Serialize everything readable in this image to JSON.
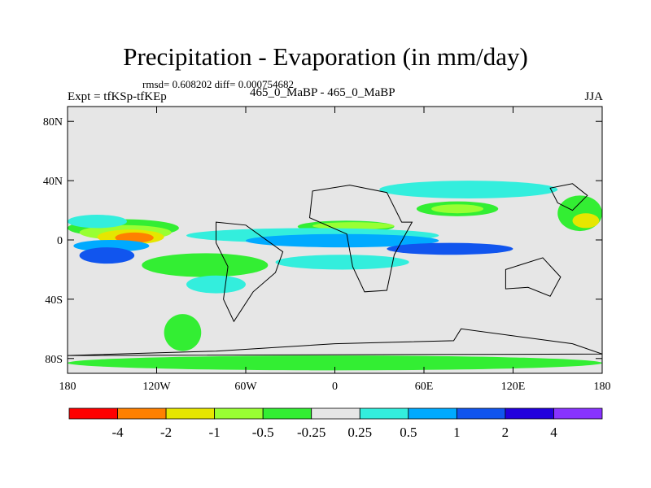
{
  "chart_data": {
    "type": "heatmap",
    "title": "Precipitation - Evaporation (in mm/day)",
    "stats_line": "rmsd= 0.608202 diff= 0.000754682",
    "experiment_label": "Expt = tfKSp-tfKEp",
    "center_subtitle": "465_0_MaBP - 465_0_MaBP",
    "season": "JJA",
    "x_ticks": [
      "180",
      "120W",
      "60W",
      "0",
      "60E",
      "120E",
      "180"
    ],
    "y_ticks": [
      "80N",
      "40N",
      "0",
      "40S",
      "80S"
    ],
    "xlim": [
      -180,
      180
    ],
    "ylim": [
      -90,
      90
    ],
    "colorbar": {
      "labels": [
        "-4",
        "-2",
        "-1",
        "-0.5",
        "-0.25",
        "0.25",
        "0.5",
        "1",
        "2",
        "4"
      ],
      "colors": [
        "#ff0000",
        "#ff8000",
        "#e6e600",
        "#99ff33",
        "#33ee33",
        "#e6e6e6",
        "#33eedd",
        "#00aaff",
        "#1155ee",
        "#2200dd",
        "#8833ff"
      ]
    },
    "background_color": "#e6e6e6",
    "regions": [
      {
        "class": "-0.5 to -0.25",
        "lon": [
          -180,
          -105
        ],
        "lat": [
          2,
          14
        ]
      },
      {
        "class": "-1 to -0.5",
        "lon": [
          -172,
          -110
        ],
        "lat": [
          0,
          10
        ]
      },
      {
        "class": "-2 to -1",
        "lon": [
          -160,
          -115
        ],
        "lat": [
          -3,
          7
        ]
      },
      {
        "class": "-4 to -2",
        "lon": [
          -148,
          -122
        ],
        "lat": [
          -2,
          5
        ]
      },
      {
        "class": "0.5 to 1",
        "lon": [
          -176,
          -125
        ],
        "lat": [
          -8,
          0
        ]
      },
      {
        "class": "1 to 2",
        "lon": [
          -172,
          -135
        ],
        "lat": [
          -16,
          -5
        ]
      },
      {
        "class": "0.25 to 0.5",
        "lon": [
          -180,
          -140
        ],
        "lat": [
          8,
          17
        ]
      },
      {
        "class": "-0.5 to -0.25",
        "lon": [
          -130,
          -45
        ],
        "lat": [
          -25,
          -9
        ]
      },
      {
        "class": "0.25 to 0.5",
        "lon": [
          -100,
          -60
        ],
        "lat": [
          -36,
          -24
        ]
      },
      {
        "class": "-0.5 to -0.25",
        "lon": [
          -25,
          40
        ],
        "lat": [
          5,
          13
        ]
      },
      {
        "class": "-1 to -0.5",
        "lon": [
          -15,
          40
        ],
        "lat": [
          7,
          12
        ]
      },
      {
        "class": "-0.5 to -0.25",
        "lon": [
          55,
          110
        ],
        "lat": [
          16,
          26
        ]
      },
      {
        "class": "-1 to -0.5",
        "lon": [
          65,
          100
        ],
        "lat": [
          18,
          24
        ]
      },
      {
        "class": "0.25 to 0.5",
        "lon": [
          -100,
          70
        ],
        "lat": [
          -2,
          8
        ]
      },
      {
        "class": "0.5 to 1",
        "lon": [
          -60,
          70
        ],
        "lat": [
          -5,
          4
        ]
      },
      {
        "class": "1 to 2",
        "lon": [
          35,
          120
        ],
        "lat": [
          -10,
          -2
        ]
      },
      {
        "class": "0.25 to 0.5",
        "lon": [
          -40,
          50
        ],
        "lat": [
          -20,
          -10
        ]
      },
      {
        "class": "0.25 to 0.5",
        "lon": [
          30,
          150
        ],
        "lat": [
          28,
          40
        ]
      },
      {
        "class": "-0.5 to -0.25",
        "lon": [
          -180,
          180
        ],
        "lat": [
          -88,
          -78
        ]
      },
      {
        "class": "-0.5 to -0.25",
        "lon": [
          -115,
          -90
        ],
        "lat": [
          -75,
          -50
        ]
      },
      {
        "class": "-0.5 to -0.25",
        "lon": [
          150,
          180
        ],
        "lat": [
          6,
          30
        ]
      },
      {
        "class": "-2 to -1",
        "lon": [
          160,
          178
        ],
        "lat": [
          8,
          18
        ]
      }
    ]
  }
}
